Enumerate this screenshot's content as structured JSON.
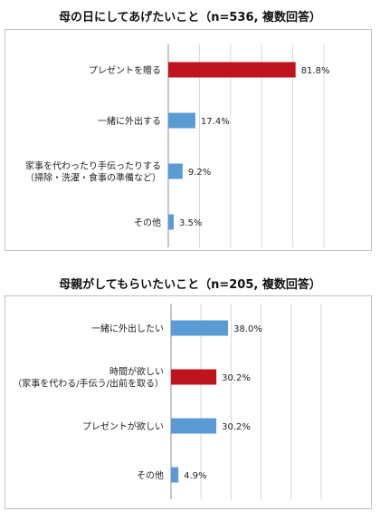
{
  "chart_data": [
    {
      "type": "bar",
      "orientation": "horizontal",
      "title": "母の日にしてあげたいこと（n=536, 複数回答）",
      "categories": [
        [
          "プレゼントを贈る"
        ],
        [
          "一緒に外出する"
        ],
        [
          "家事を代わったり手伝ったりする",
          "（掃除・洗濯・食事の準備など）"
        ],
        [
          "その他"
        ]
      ],
      "values": [
        81.8,
        17.4,
        9.2,
        3.5
      ],
      "value_labels": [
        "81.8%",
        "17.4%",
        "9.2%",
        "3.5%"
      ],
      "bar_colors": [
        "#c0141c",
        "#5b9bd5",
        "#5b9bd5",
        "#5b9bd5"
      ],
      "xlim": [
        0,
        100
      ],
      "grid": true
    },
    {
      "type": "bar",
      "orientation": "horizontal",
      "title": "母親がしてもらいたいこと（n=205, 複数回答）",
      "categories": [
        [
          "一緒に外出したい"
        ],
        [
          "時間が欲しい",
          "（家事を代わる/手伝う/出前を取る）"
        ],
        [
          "プレゼントが欲しい"
        ],
        [
          "その他"
        ]
      ],
      "values": [
        38.0,
        30.2,
        30.2,
        4.9
      ],
      "value_labels": [
        "38.0%",
        "30.2%",
        "30.2%",
        "4.9%"
      ],
      "bar_colors": [
        "#5b9bd5",
        "#c0141c",
        "#5b9bd5",
        "#5b9bd5"
      ],
      "xlim": [
        0,
        100
      ],
      "grid": true
    }
  ]
}
